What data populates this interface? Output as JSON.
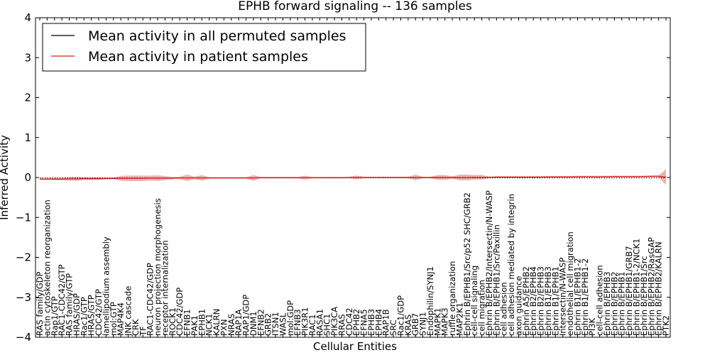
{
  "chart_data": {
    "type": "line",
    "title": "EPHB forward signaling -- 136 samples",
    "xlabel": "Cellular Entities",
    "ylabel": "Inferred Activity",
    "ylim": [
      -4,
      4
    ],
    "yticks": [
      -4,
      -3,
      -2,
      -1,
      0,
      1,
      2,
      3,
      4
    ],
    "grid": false,
    "legend": {
      "placement": "top-left",
      "entries": [
        {
          "label": "Mean activity in all permuted samples",
          "color": "#000000"
        },
        {
          "label": "Mean activity in patient samples",
          "color": "#d62020"
        }
      ]
    },
    "colors": {
      "permuted": "#000000",
      "patient": "#d62020",
      "band": "#e87f7f"
    },
    "categories": [
      "RAS family/GDP",
      "actin cytoskeleton reorganization",
      "Rap1/GTP",
      "RAC1-CDC42/GTP",
      "RAS family/GTP",
      "HRAS/GDP",
      "Rac1/GTP",
      "HRAS/GTP",
      "CDC42/GTP",
      "lamellipodium assembly",
      "mol:GTP",
      "MAP4K4",
      "JNK cascade",
      "CRK",
      "TF",
      "RAC1-CDC42/GDP",
      "neuron projection morphogenesis",
      "receptor internalization",
      "ROCK1",
      "CDC42/GDP",
      "EFNB1",
      "PAK1",
      "EPHB1",
      "NCK1",
      "KALRN",
      "PXN",
      "NRAS",
      "RAP1A",
      "RAP1/GDP",
      "DNM1",
      "EFNB2",
      "GRB2",
      "ITSN1",
      "WASL",
      "mol:GDP",
      "EFNB3",
      "PIK3R1",
      "RAC1",
      "RASA1",
      "SHC1",
      "PIK3CA",
      "RRAS",
      "CDC42",
      "EPHB2",
      "EFNA5",
      "EPHB3",
      "EPHB4",
      "RAP1B",
      "SRC",
      "Rac1/GDP",
      "KRAS",
      "GRB7",
      "SYNJ1",
      "Endophilin/SYNJ1",
      "MAPK1",
      "MAPK3",
      "ruffle organization",
      "MAP2K1",
      "Ephrin B/EPHB1/Src/p52 SHC/GRB2",
      "cell-cell signaling",
      "cell migration",
      "Ephrin B/EPHB2/Intersectin/N-WASP",
      "Ephrin B/EPHB1/Src/Paxillin",
      "cell adhesion",
      "cell adhesion mediated by integrin",
      "axon guidance",
      "Ephrin A5/EPHB2",
      "Ephrin B2/EPHB4",
      "Ephrin B2/EPHB3",
      "Ephrin B1/EPHB3",
      "Ephrin B1/EPHB1",
      "Intersectin/N-WASP",
      "endothelial cell migration",
      "Ephrin B1/EPHB1-2",
      "Ephrin B1/EPHB1-2",
      "PI3K",
      "cell-cell adhesion",
      "Ephrin B/EPHB3",
      "Ephrin B/EPHB2",
      "Ephrin B/EPHB1",
      "Ephrin B/EPHB1/GRB7",
      "Ephrin B/EPHB1-2/NCK1",
      "Ephrin B/EPHB1/Src",
      "Ephrin B/EPHB2/RasGAP",
      "Ephrin B/EPHB2/KALRN",
      "PTK2"
    ],
    "series": [
      {
        "key": "permuted",
        "values": [
          -0.01,
          -0.01,
          -0.01,
          -0.01,
          -0.01,
          -0.01,
          -0.01,
          -0.01,
          -0.01,
          -0.01,
          -0.01,
          -0.01,
          -0.01,
          -0.01,
          -0.01,
          -0.01,
          -0.01,
          -0.01,
          -0.01,
          -0.01,
          -0.01,
          -0.01,
          -0.01,
          -0.01,
          -0.01,
          -0.01,
          -0.01,
          -0.01,
          -0.01,
          -0.01,
          -0.01,
          -0.01,
          -0.01,
          -0.01,
          -0.01,
          -0.01,
          -0.01,
          -0.01,
          -0.01,
          -0.01,
          -0.01,
          -0.01,
          -0.01,
          -0.01,
          -0.01,
          -0.01,
          -0.01,
          -0.01,
          -0.01,
          -0.01,
          -0.01,
          -0.01,
          -0.01,
          -0.01,
          -0.01,
          -0.01,
          -0.01,
          -0.01,
          -0.01,
          -0.01,
          -0.01,
          -0.01,
          -0.01,
          -0.01,
          -0.01,
          -0.01,
          -0.01,
          -0.01,
          -0.01,
          -0.01,
          -0.01,
          -0.01,
          -0.01,
          -0.01,
          -0.01,
          -0.01,
          -0.01,
          -0.01,
          -0.01,
          -0.01,
          -0.01,
          -0.01,
          -0.01,
          -0.01,
          -0.01,
          -0.01
        ]
      },
      {
        "key": "patient",
        "values": [
          -0.04,
          -0.04,
          -0.04,
          -0.04,
          -0.035,
          -0.035,
          -0.03,
          -0.03,
          -0.03,
          -0.025,
          -0.025,
          -0.02,
          -0.02,
          -0.02,
          -0.02,
          -0.015,
          -0.015,
          -0.015,
          -0.015,
          -0.01,
          -0.01,
          -0.01,
          -0.01,
          -0.01,
          -0.01,
          -0.01,
          -0.01,
          -0.01,
          -0.01,
          -0.01,
          -0.005,
          -0.005,
          -0.005,
          -0.005,
          -0.005,
          -0.005,
          -0.005,
          -0.005,
          -0.005,
          -0.005,
          -0.005,
          -0.005,
          0.0,
          0.0,
          0.0,
          0.0,
          0.0,
          0.0,
          0.0,
          0.0,
          0.0,
          0.0,
          0.0,
          0.0,
          0.0,
          0.0,
          0.0,
          0.0,
          0.0,
          0.005,
          0.005,
          0.005,
          0.01,
          0.01,
          0.01,
          0.01,
          0.01,
          0.01,
          0.01,
          0.015,
          0.015,
          0.015,
          0.015,
          0.02,
          0.02,
          0.02,
          0.02,
          0.02,
          0.025,
          0.025,
          0.025,
          0.025,
          0.025,
          0.03,
          0.03,
          0.01
        ]
      }
    ],
    "band_halfwidth": [
      0.02,
      0.02,
      0.03,
      0.03,
      0.04,
      0.05,
      0.03,
      0.03,
      0.03,
      0.02,
      0.02,
      0.06,
      0.07,
      0.07,
      0.07,
      0.06,
      0.07,
      0.05,
      0.03,
      0.03,
      0.08,
      0.03,
      0.07,
      0.02,
      0.02,
      0.02,
      0.02,
      0.02,
      0.02,
      0.07,
      0.02,
      0.02,
      0.02,
      0.02,
      0.02,
      0.02,
      0.05,
      0.02,
      0.02,
      0.02,
      0.02,
      0.02,
      0.02,
      0.05,
      0.02,
      0.02,
      0.02,
      0.02,
      0.02,
      0.02,
      0.02,
      0.07,
      0.02,
      0.02,
      0.06,
      0.06,
      0.03,
      0.07,
      0.07,
      0.06,
      0.06,
      0.02,
      0.02,
      0.02,
      0.02,
      0.02,
      0.02,
      0.02,
      0.02,
      0.02,
      0.02,
      0.02,
      0.02,
      0.02,
      0.02,
      0.02,
      0.02,
      0.02,
      0.02,
      0.02,
      0.02,
      0.02,
      0.02,
      0.02,
      0.02,
      0.2
    ]
  }
}
